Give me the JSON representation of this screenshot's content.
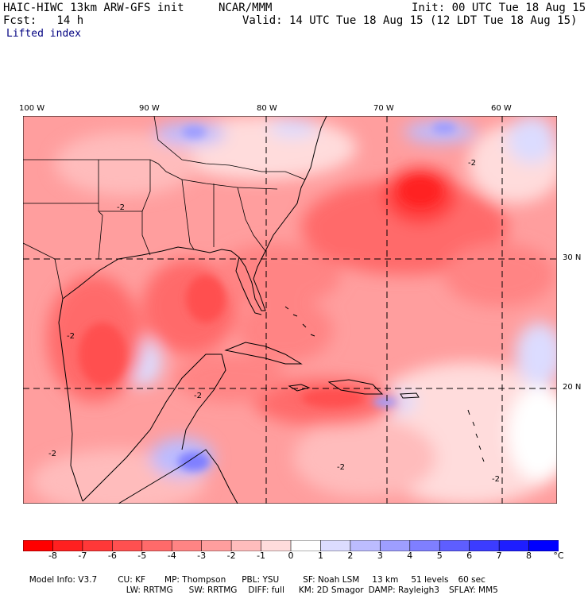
{
  "header": {
    "model": "HAIC-HIWC 13km ARW-GFS init",
    "org": "NCAR/MMM",
    "init": "Init: 00 UTC Tue 18 Aug 15",
    "fcst": "Fcst:   14 h",
    "valid": "Valid: 14 UTC Tue 18 Aug 15 (12 LDT Tue 18 Aug 15)",
    "field": "Lifted index"
  },
  "map": {
    "lon_labels": [
      "100 W",
      "90 W",
      "80 W",
      "70 W",
      "60 W"
    ],
    "lat_labels": [
      "30 N",
      "20 N"
    ],
    "contour_labels": [
      "-2",
      "-2",
      "-2",
      "-2",
      "-2",
      "-2",
      "-2"
    ]
  },
  "colorbar": {
    "labels": [
      "-8",
      "-7",
      "-6",
      "-5",
      "-4",
      "-3",
      "-2",
      "-1",
      "0",
      "1",
      "2",
      "3",
      "4",
      "5",
      "6",
      "7",
      "8"
    ],
    "unit": "°C",
    "colors": [
      "#ff0000",
      "#ff2020",
      "#ff3838",
      "#ff5050",
      "#ff6a6a",
      "#ff8484",
      "#ff9e9e",
      "#ffbcbc",
      "#ffdcdc",
      "#ffffff",
      "#dcdcff",
      "#bcbcff",
      "#9e9eff",
      "#7f7fff",
      "#5e5eff",
      "#3c3cff",
      "#1e1eff",
      "#0000ff"
    ]
  },
  "footer": {
    "line1": [
      "Model Info: V3.7",
      "CU: KF",
      "MP: Thompson",
      "PBL: YSU",
      "SF: Noah LSM",
      "13 km",
      "51 levels",
      "60 sec"
    ],
    "line2": [
      "LW: RRTMG",
      "SW: RRTMG",
      "DIFF: full",
      "KM: 2D Smagor",
      "DAMP: Rayleigh3",
      "SFLAY: MM5"
    ]
  }
}
